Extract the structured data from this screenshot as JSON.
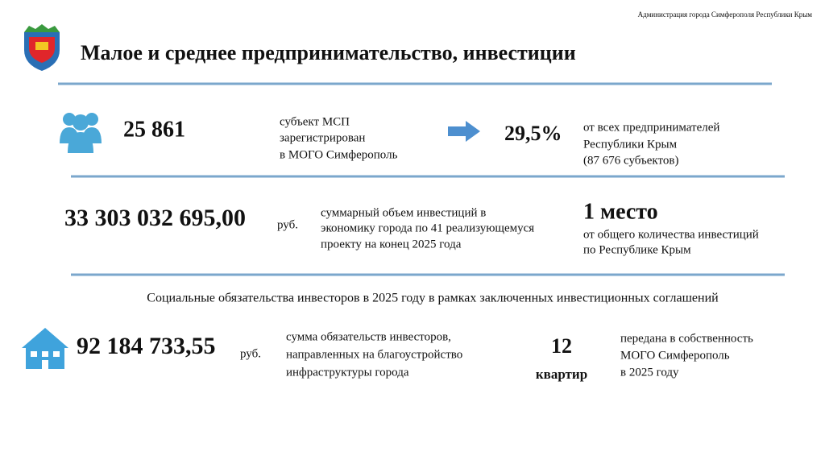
{
  "header": {
    "organization": "Администрация города Симферополя Республики Крым",
    "title": "Малое и среднее предпринимательство, инвестиции"
  },
  "rows": [
    {
      "figure": "25 861",
      "description": [
        "субъект МСП",
        "зарегистрирован",
        "в МОГО Симферополь"
      ],
      "share": "29,5%",
      "share_note": [
        "от всех предпринимателей",
        "Республики Крым",
        "(87 676 субъектов)"
      ]
    },
    {
      "figure": "33 303 032 695,00",
      "unit": "руб.",
      "description": [
        "суммарный объем инвестиций в",
        "экономику города по 41 реализующемуся",
        "проекту на конец 2025 года"
      ],
      "rank": "1 место",
      "rank_note": [
        "от общего количества инвестиций",
        "по Республике Крым"
      ]
    }
  ],
  "social": {
    "heading": "Социальные обязательства инвесторов в 2025 году в рамках заключенных инвестиционных соглашений",
    "figure": "92 184 733,55",
    "unit": "руб.",
    "description": [
      "сумма обязательств инвесторов,",
      "направленных на благоустройство",
      "инфраструктуры города"
    ],
    "count": "12",
    "count_unit": "квартир",
    "count_note": [
      "передана в собственность",
      "МОГО Симферополь",
      "в 2025 году"
    ]
  }
}
